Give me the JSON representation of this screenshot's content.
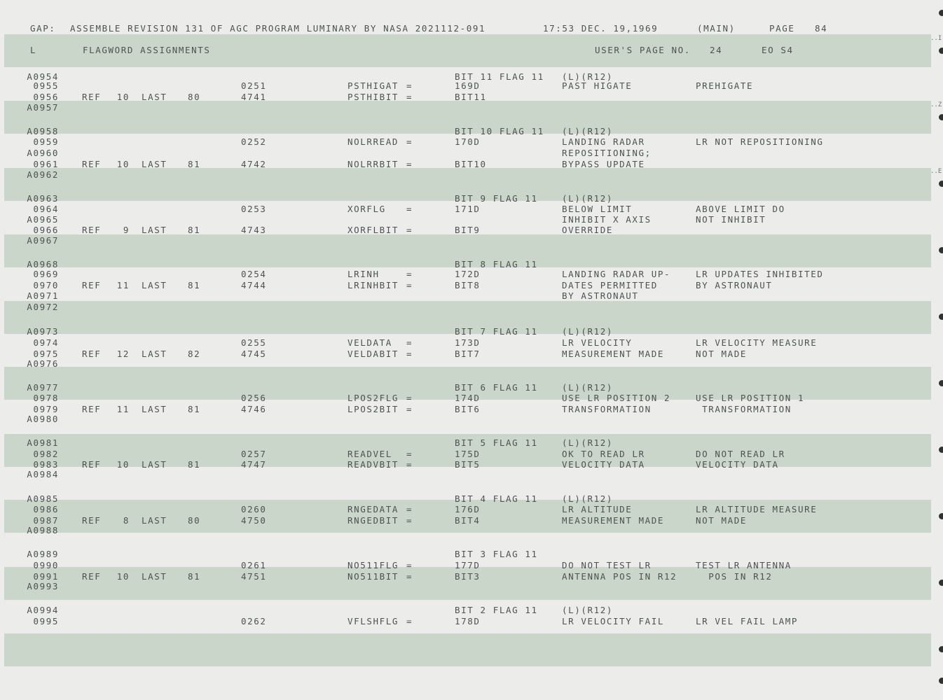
{
  "header": {
    "gap": "GAP:",
    "title": "ASSEMBLE REVISION 131 OF AGC PROGRAM LUMINARY BY NASA 2021112-091",
    "time": "17:53 DEC. 19,1969",
    "main": "(MAIN)",
    "page_label": "PAGE",
    "page_num": "84"
  },
  "subheader": {
    "l": "L",
    "section": "FLAGWORD ASSIGNMENTS",
    "users_page": "USER'S PAGE NO.",
    "users_page_num": "24",
    "eo": "EO S4"
  },
  "edge_marks": [
    "..I",
    "..Z",
    "..E"
  ],
  "rows": [
    {
      "line": "A0954",
      "val": "BIT 11 FLAG 11",
      "c1": "(L)(R12)"
    },
    {
      "line": "0955",
      "addr": "0251",
      "sym": "PSTHIGAT",
      "eq": "=",
      "val": "169D",
      "c1": "PAST HIGATE",
      "c2": "PREHIGATE"
    },
    {
      "line": "0956",
      "ref": "REF",
      "lnum": "10",
      "last": "LAST",
      "pnum": "80",
      "addr": "4741",
      "sym": "PSTHIBIT",
      "eq": "=",
      "val": "BIT11"
    },
    {
      "line": "A0957"
    },
    {
      "line": "A0958",
      "val": "BIT 10 FLAG 11",
      "c1": "(L)(R12)"
    },
    {
      "line": "0959",
      "addr": "0252",
      "sym": "NOLRREAD",
      "eq": "=",
      "val": "170D",
      "c1": "LANDING RADAR",
      "c2": "LR NOT REPOSITIONING"
    },
    {
      "line": "A0960",
      "c1": "REPOSITIONING;"
    },
    {
      "line": "0961",
      "ref": "REF",
      "lnum": "10",
      "last": "LAST",
      "pnum": "81",
      "addr": "4742",
      "sym": "NOLRRBIT",
      "eq": "=",
      "val": "BIT10",
      "c1": "BYPASS UPDATE"
    },
    {
      "line": "A0962"
    },
    {
      "line": "A0963",
      "val": "BIT 9 FLAG 11",
      "c1": "(L)(R12)"
    },
    {
      "line": "0964",
      "addr": "0253",
      "sym": "XORFLG",
      "eq": "=",
      "val": "171D",
      "c1": "BELOW LIMIT",
      "c2": "ABOVE LIMIT DO"
    },
    {
      "line": "A0965",
      "c1": "INHIBIT X AXIS",
      "c2": "NOT INHIBIT"
    },
    {
      "line": "0966",
      "ref": "REF",
      "lnum": "9",
      "last": "LAST",
      "pnum": "81",
      "addr": "4743",
      "sym": "XORFLBIT",
      "eq": "=",
      "val": "BIT9",
      "c1": "OVERRIDE"
    },
    {
      "line": "A0967"
    },
    {
      "line": "A0968",
      "val": "BIT 8 FLAG 11"
    },
    {
      "line": "0969",
      "addr": "0254",
      "sym": "LRINH",
      "eq": "=",
      "val": "172D",
      "c1": "LANDING RADAR UP-",
      "c2": "LR UPDATES INHIBITED"
    },
    {
      "line": "0970",
      "ref": "REF",
      "lnum": "11",
      "last": "LAST",
      "pnum": "81",
      "addr": "4744",
      "sym": "LRINHBIT",
      "eq": "=",
      "val": "BIT8",
      "c1": "DATES PERMITTED",
      "c2": "BY ASTRONAUT"
    },
    {
      "line": "A0971",
      "c1": "BY ASTRONAUT"
    },
    {
      "line": "A0972"
    },
    {
      "line": "A0973",
      "val": "BIT 7 FLAG 11",
      "c1": "(L)(R12)"
    },
    {
      "line": "0974",
      "addr": "0255",
      "sym": "VELDATA",
      "eq": "=",
      "val": "173D",
      "c1": "LR VELOCITY",
      "c2": "LR VELOCITY MEASURE"
    },
    {
      "line": "0975",
      "ref": "REF",
      "lnum": "12",
      "last": "LAST",
      "pnum": "82",
      "addr": "4745",
      "sym": "VELDABIT",
      "eq": "=",
      "val": "BIT7",
      "c1": "MEASUREMENT MADE",
      "c2": "NOT MADE"
    },
    {
      "line": "A0976"
    },
    {
      "line": "A0977",
      "val": "BIT 6 FLAG 11",
      "c1": "(L)(R12)"
    },
    {
      "line": "0978",
      "addr": "0256",
      "sym": "LPOS2FLG",
      "eq": "=",
      "val": "174D",
      "c1": "USE LR POSITION 2",
      "c2": "USE LR POSITION 1"
    },
    {
      "line": "0979",
      "ref": "REF",
      "lnum": "11",
      "last": "LAST",
      "pnum": "81",
      "addr": "4746",
      "sym": "LPOS2BIT",
      "eq": "=",
      "val": "BIT6",
      "c1": "TRANSFORMATION",
      "c2": " TRANSFORMATION"
    },
    {
      "line": "A0980"
    },
    {
      "line": "A0981",
      "val": "BIT 5 FLAG 11",
      "c1": "(L)(R12)"
    },
    {
      "line": "0982",
      "addr": "0257",
      "sym": "READVEL",
      "eq": "=",
      "val": "175D",
      "c1": "OK TO READ LR",
      "c2": "DO NOT READ LR"
    },
    {
      "line": "0983",
      "ref": "REF",
      "lnum": "10",
      "last": "LAST",
      "pnum": "81",
      "addr": "4747",
      "sym": "READVBIT",
      "eq": "=",
      "val": "BIT5",
      "c1": "VELOCITY DATA",
      "c2": "VELOCITY DATA"
    },
    {
      "line": "A0984"
    },
    {
      "line": "A0985",
      "val": "BIT 4 FLAG 11",
      "c1": "(L)(R12)"
    },
    {
      "line": "0986",
      "addr": "0260",
      "sym": "RNGEDATA",
      "eq": "=",
      "val": "176D",
      "c1": "LR ALTITUDE",
      "c2": "LR ALTITUDE MEASURE"
    },
    {
      "line": "0987",
      "ref": "REF",
      "lnum": "8",
      "last": "LAST",
      "pnum": "80",
      "addr": "4750",
      "sym": "RNGEDBIT",
      "eq": "=",
      "val": "BIT4",
      "c1": "MEASUREMENT MADE",
      "c2": "NOT MADE"
    },
    {
      "line": "A0988"
    },
    {
      "line": "A0989",
      "val": "BIT 3 FLAG 11"
    },
    {
      "line": "0990",
      "addr": "0261",
      "sym": "NO511FLG",
      "eq": "=",
      "val": "177D",
      "c1": "DO NOT TEST LR",
      "c2": "TEST LR ANTENNA"
    },
    {
      "line": "0991",
      "ref": "REF",
      "lnum": "10",
      "last": "LAST",
      "pnum": "81",
      "addr": "4751",
      "sym": "NO511BIT",
      "eq": "=",
      "val": "BIT3",
      "c1": "ANTENNA POS IN R12",
      "c2": "  POS IN R12"
    },
    {
      "line": "A0993"
    },
    {
      "line": "A0994",
      "val": "BIT 2 FLAG 11",
      "c1": "(L)(R12)"
    },
    {
      "line": "0995",
      "addr": "0262",
      "sym": "VFLSHFLG",
      "eq": "=",
      "val": "178D",
      "c1": "LR VELOCITY FAIL",
      "c2": "LR VEL FAIL LAMP"
    }
  ]
}
